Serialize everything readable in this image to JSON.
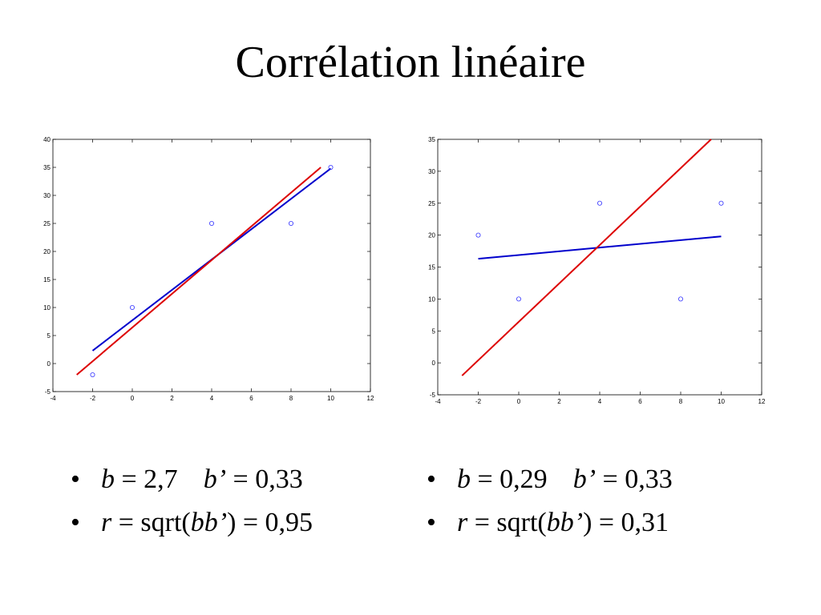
{
  "slide": {
    "title": "Corrélation linéaire"
  },
  "bullets": {
    "bullet_char": "•",
    "left": {
      "l1_b_sym": "b",
      "l1_b_val": " = 2,7",
      "l1_bp_sym": "b’",
      "l1_bp_val": " = 0,33",
      "l2_r_sym": "r",
      "l2_r_mid": " = sqrt(",
      "l2_bb_sym": "bb’",
      "l2_r_val": ") = 0,95"
    },
    "right": {
      "l1_b_sym": "b",
      "l1_b_val": " = 0,29",
      "l1_bp_sym": "b’",
      "l1_bp_val": " = 0,33",
      "l2_r_sym": "r",
      "l2_r_mid": " = sqrt(",
      "l2_bb_sym": "bb’",
      "l2_r_val": ") = 0,31"
    }
  },
  "chart_data": [
    {
      "type": "scatter",
      "xlim": [
        -4,
        12
      ],
      "ylim": [
        -5,
        40
      ],
      "xticks": [
        -4,
        -2,
        0,
        2,
        4,
        6,
        8,
        10,
        12
      ],
      "yticks": [
        -5,
        0,
        5,
        10,
        15,
        20,
        25,
        30,
        35,
        40
      ],
      "points": [
        {
          "x": -2,
          "y": -2
        },
        {
          "x": 0,
          "y": 10
        },
        {
          "x": 4,
          "y": 25
        },
        {
          "x": 8,
          "y": 25
        },
        {
          "x": 10,
          "y": 35
        }
      ],
      "lines": [
        {
          "color": "#0000cc",
          "x": [
            -2,
            10
          ],
          "y": [
            2.3,
            34.8
          ]
        },
        {
          "color": "#dd0000",
          "x": [
            -2.8,
            9.5
          ],
          "y": [
            -2,
            35
          ]
        }
      ],
      "marker_color": "#3333ff"
    },
    {
      "type": "scatter",
      "xlim": [
        -4,
        12
      ],
      "ylim": [
        -5,
        35
      ],
      "xticks": [
        -4,
        -2,
        0,
        2,
        4,
        6,
        8,
        10,
        12
      ],
      "yticks": [
        -5,
        0,
        5,
        10,
        15,
        20,
        25,
        30,
        35
      ],
      "points": [
        {
          "x": -2,
          "y": 20
        },
        {
          "x": 0,
          "y": 10
        },
        {
          "x": 4,
          "y": 25
        },
        {
          "x": 8,
          "y": 10
        },
        {
          "x": 10,
          "y": 25
        }
      ],
      "lines": [
        {
          "color": "#0000cc",
          "x": [
            -2,
            10
          ],
          "y": [
            16.3,
            19.8
          ]
        },
        {
          "color": "#dd0000",
          "x": [
            -2.8,
            9.5
          ],
          "y": [
            -2,
            35
          ]
        }
      ],
      "marker_color": "#3333ff"
    }
  ]
}
